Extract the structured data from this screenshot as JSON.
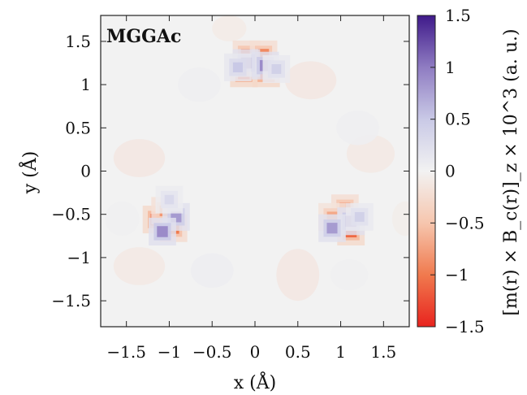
{
  "chart_data": {
    "type": "heatmap",
    "panel_label": "MGGAc",
    "xlabel": "x (Å)",
    "ylabel": "y (Å)",
    "xlim": [
      -1.8,
      1.8
    ],
    "ylim": [
      -1.8,
      1.8
    ],
    "x_ticks": [
      -1.5,
      -1,
      -0.5,
      0,
      0.5,
      1,
      1.5
    ],
    "y_ticks": [
      -1.5,
      -1,
      -0.5,
      0,
      0.5,
      1,
      1.5
    ],
    "x_tick_labels": [
      "−1.5",
      "−1",
      "−0.5",
      "0",
      "0.5",
      "1",
      "1.5"
    ],
    "y_tick_labels": [
      "−1.5",
      "−1",
      "−0.5",
      "0",
      "0.5",
      "1",
      "1.5"
    ],
    "colorbar": {
      "label": "[m(r) × B_c(r)]_z × 10^3 (a. u.)",
      "range": [
        -1.5,
        1.5
      ],
      "ticks": [
        -1.5,
        -1,
        -0.5,
        0,
        0.5,
        1,
        1.5
      ],
      "tick_labels": [
        "−1.5",
        "−1",
        "−0.5",
        "0",
        "0.5",
        "1",
        "1.5"
      ],
      "colors": [
        "#e8231e",
        "#f07a4e",
        "#f6c6ae",
        "#f2f2f2",
        "#c9c9e6",
        "#8f7cc2",
        "#3f1a8a"
      ]
    },
    "grid": false,
    "atom_sites": [
      {
        "x": 0.0,
        "y": 1.1
      },
      {
        "x": -1.0,
        "y": -0.58
      },
      {
        "x": 1.0,
        "y": -0.58
      }
    ],
    "core_features": [
      {
        "site": 0,
        "dx": -0.13,
        "dy": 0.03,
        "value": -1.2
      },
      {
        "site": 0,
        "dx": 0.13,
        "dy": 0.03,
        "value": -1.2
      },
      {
        "site": 0,
        "dx": -0.1,
        "dy": 0.25,
        "value": -0.9
      },
      {
        "site": 0,
        "dx": 0.1,
        "dy": 0.25,
        "value": -0.9
      },
      {
        "site": 0,
        "dx": -0.1,
        "dy": 0.15,
        "value": 0.9
      },
      {
        "site": 0,
        "dx": 0.12,
        "dy": 0.12,
        "value": 0.9
      },
      {
        "site": 0,
        "dx": -0.2,
        "dy": 0.1,
        "value": 0.5
      },
      {
        "site": 0,
        "dx": 0.25,
        "dy": 0.08,
        "value": 0.4
      },
      {
        "site": 1,
        "dx": -0.15,
        "dy": 0.02,
        "value": -1.1
      },
      {
        "site": 1,
        "dx": 0.05,
        "dy": -0.08,
        "value": -1.0
      },
      {
        "site": 1,
        "dx": -0.05,
        "dy": 0.12,
        "value": -0.8
      },
      {
        "site": 1,
        "dx": 0.08,
        "dy": 0.05,
        "value": 0.8
      },
      {
        "site": 1,
        "dx": -0.08,
        "dy": -0.12,
        "value": 0.9
      },
      {
        "site": 1,
        "dx": 0.0,
        "dy": 0.25,
        "value": 0.3
      },
      {
        "site": 2,
        "dx": 0.12,
        "dy": -0.12,
        "value": -1.1
      },
      {
        "site": 2,
        "dx": 0.05,
        "dy": 0.15,
        "value": -0.9
      },
      {
        "site": 2,
        "dx": -0.1,
        "dy": 0.05,
        "value": -0.7
      },
      {
        "site": 2,
        "dx": 0.12,
        "dy": 0.0,
        "value": 0.9
      },
      {
        "site": 2,
        "dx": -0.1,
        "dy": -0.08,
        "value": 0.8
      },
      {
        "site": 2,
        "dx": 0.22,
        "dy": 0.05,
        "value": 0.4
      }
    ],
    "lobes": [
      {
        "x": 0.65,
        "y": 1.05,
        "rx": 0.3,
        "ry": 0.22,
        "value": -0.12
      },
      {
        "x": 1.35,
        "y": 0.2,
        "rx": 0.28,
        "ry": 0.22,
        "value": -0.1
      },
      {
        "x": -1.35,
        "y": 0.15,
        "rx": 0.3,
        "ry": 0.22,
        "value": -0.12
      },
      {
        "x": -1.35,
        "y": -1.1,
        "rx": 0.3,
        "ry": 0.22,
        "value": -0.1
      },
      {
        "x": 0.5,
        "y": -1.2,
        "rx": 0.25,
        "ry": 0.3,
        "value": -0.12
      },
      {
        "x": -0.3,
        "y": 1.65,
        "rx": 0.2,
        "ry": 0.15,
        "value": -0.08
      },
      {
        "x": 1.75,
        "y": -0.55,
        "rx": 0.15,
        "ry": 0.2,
        "value": -0.06
      },
      {
        "x": -0.65,
        "y": 1.0,
        "rx": 0.25,
        "ry": 0.2,
        "value": 0.05
      },
      {
        "x": 1.2,
        "y": 0.5,
        "rx": 0.25,
        "ry": 0.2,
        "value": 0.05
      },
      {
        "x": -0.5,
        "y": -1.15,
        "rx": 0.25,
        "ry": 0.2,
        "value": 0.06
      },
      {
        "x": 1.1,
        "y": -1.2,
        "rx": 0.22,
        "ry": 0.18,
        "value": 0.04
      },
      {
        "x": -1.55,
        "y": -0.55,
        "rx": 0.2,
        "ry": 0.2,
        "value": 0.04
      }
    ]
  }
}
